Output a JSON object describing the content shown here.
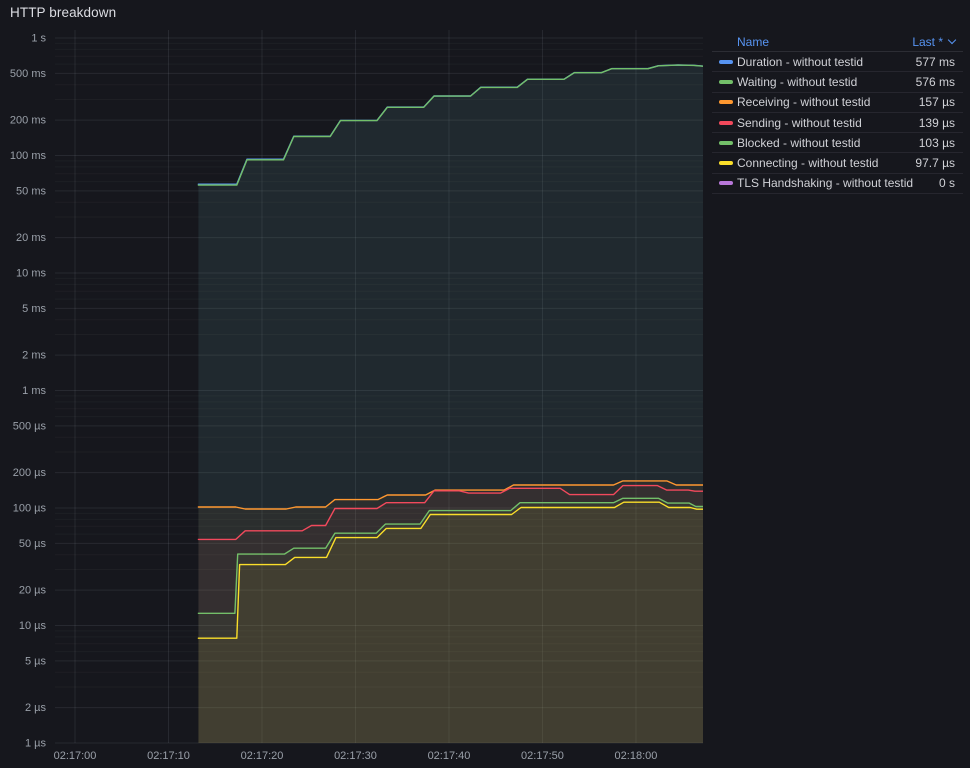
{
  "panel": {
    "title": "HTTP breakdown"
  },
  "legend": {
    "name_header": "Name",
    "last_header": "Last *",
    "sort_direction": "desc"
  },
  "theme": {
    "background": "#16171d",
    "text_primary": "#d0d1d6",
    "text_axis": "#9aa0a9",
    "link_blue": "#5794F2",
    "grid_major": "rgba(201,209,217,0.10)",
    "grid_minor": "rgba(201,209,217,0.045)",
    "row_separator": "rgba(204,204,220,0.09)"
  },
  "chart_data": {
    "type": "line",
    "title": "HTTP breakdown",
    "y_scale": "log10",
    "y_unit": "µs",
    "y_range": [
      1,
      1000000
    ],
    "x_range_s": [
      -2.14,
      67.17
    ],
    "grid": true,
    "legend_position": "right-table",
    "x_base_time": "02:17:00",
    "x_ticks": [
      {
        "t": 0,
        "label": "02:17:00"
      },
      {
        "t": 10,
        "label": "02:17:10"
      },
      {
        "t": 20,
        "label": "02:17:20"
      },
      {
        "t": 30,
        "label": "02:17:30"
      },
      {
        "t": 40,
        "label": "02:17:40"
      },
      {
        "t": 50,
        "label": "02:17:50"
      },
      {
        "t": 60,
        "label": "02:18:00"
      }
    ],
    "y_ticks": [
      {
        "v": 1000000,
        "label": "1 s"
      },
      {
        "v": 500000,
        "label": "500 ms"
      },
      {
        "v": 200000,
        "label": "200 ms"
      },
      {
        "v": 100000,
        "label": "100 ms"
      },
      {
        "v": 50000,
        "label": "50 ms"
      },
      {
        "v": 20000,
        "label": "20 ms"
      },
      {
        "v": 10000,
        "label": "10 ms"
      },
      {
        "v": 5000,
        "label": "5 ms"
      },
      {
        "v": 2000,
        "label": "2 ms"
      },
      {
        "v": 1000,
        "label": "1 ms"
      },
      {
        "v": 500,
        "label": "500 µs"
      },
      {
        "v": 200,
        "label": "200 µs"
      },
      {
        "v": 100,
        "label": "100 µs"
      },
      {
        "v": 50,
        "label": "50 µs"
      },
      {
        "v": 20,
        "label": "20 µs"
      },
      {
        "v": 10,
        "label": "10 µs"
      },
      {
        "v": 5,
        "label": "5 µs"
      },
      {
        "v": 2,
        "label": "2 µs"
      },
      {
        "v": 1,
        "label": "1 µs"
      }
    ],
    "minor_gridline_mantissas": [
      3,
      4,
      6,
      7,
      8,
      9
    ],
    "series": [
      {
        "name": "Duration - without testid",
        "slug": "duration",
        "color": "#5794F2",
        "last": "577 ms",
        "fill_opacity": 0.065,
        "points": [
          [
            13.2,
            57000
          ],
          [
            17.3,
            57000
          ],
          [
            18.4,
            93000
          ],
          [
            22.3,
            93000
          ],
          [
            23.4,
            146000
          ],
          [
            27.3,
            146000
          ],
          [
            28.4,
            199000
          ],
          [
            32.3,
            199000
          ],
          [
            33.4,
            258000
          ],
          [
            37.3,
            258000
          ],
          [
            38.4,
            321000
          ],
          [
            42.3,
            321000
          ],
          [
            43.4,
            381000
          ],
          [
            47.3,
            381000
          ],
          [
            48.4,
            446000
          ],
          [
            52.3,
            446000
          ],
          [
            53.4,
            508000
          ],
          [
            56.3,
            508000
          ],
          [
            57.4,
            549000
          ],
          [
            61.3,
            549000
          ],
          [
            62.4,
            581000
          ],
          [
            64.5,
            589000
          ],
          [
            66.2,
            586000
          ],
          [
            67.2,
            577000
          ]
        ]
      },
      {
        "name": "Waiting - without testid",
        "slug": "waiting",
        "color": "#73BF69",
        "last": "576 ms",
        "fill_opacity": 0.065,
        "points": [
          [
            13.2,
            56000
          ],
          [
            17.3,
            56000
          ],
          [
            18.4,
            92000
          ],
          [
            22.3,
            92000
          ],
          [
            23.4,
            145000
          ],
          [
            27.3,
            145000
          ],
          [
            28.4,
            198000
          ],
          [
            32.3,
            198000
          ],
          [
            33.4,
            257000
          ],
          [
            37.3,
            257000
          ],
          [
            38.4,
            320000
          ],
          [
            42.3,
            320000
          ],
          [
            43.4,
            380000
          ],
          [
            47.3,
            380000
          ],
          [
            48.4,
            445000
          ],
          [
            52.3,
            445000
          ],
          [
            53.4,
            507000
          ],
          [
            56.3,
            507000
          ],
          [
            57.4,
            548000
          ],
          [
            61.3,
            548000
          ],
          [
            62.4,
            580000
          ],
          [
            64.5,
            588000
          ],
          [
            66.2,
            585000
          ],
          [
            67.2,
            576000
          ]
        ]
      },
      {
        "name": "Receiving - without testid",
        "slug": "receiving",
        "color": "#FF9830",
        "last": "157 µs",
        "fill_opacity": 0.05,
        "points": [
          [
            13.2,
            102
          ],
          [
            17.2,
            102
          ],
          [
            18.2,
            98
          ],
          [
            22.6,
            98
          ],
          [
            23.6,
            102
          ],
          [
            26.8,
            102
          ],
          [
            27.8,
            118
          ],
          [
            32.4,
            118
          ],
          [
            33.4,
            129
          ],
          [
            37.5,
            129
          ],
          [
            38.5,
            142
          ],
          [
            45.9,
            142
          ],
          [
            46.9,
            157
          ],
          [
            57.6,
            157
          ],
          [
            58.6,
            170
          ],
          [
            63.3,
            170
          ],
          [
            64.3,
            157
          ],
          [
            67.2,
            157
          ]
        ]
      },
      {
        "name": "Sending - without testid",
        "slug": "sending",
        "color": "#F2495C",
        "last": "139 µs",
        "fill_opacity": 0.05,
        "points": [
          [
            13.2,
            54
          ],
          [
            17.2,
            54
          ],
          [
            18.2,
            64
          ],
          [
            24.3,
            64
          ],
          [
            25.3,
            71
          ],
          [
            26.8,
            71
          ],
          [
            27.8,
            99
          ],
          [
            32.3,
            99
          ],
          [
            33.3,
            111
          ],
          [
            37.4,
            111
          ],
          [
            38.4,
            140
          ],
          [
            41.1,
            140
          ],
          [
            42.1,
            134
          ],
          [
            45.5,
            134
          ],
          [
            46.5,
            147
          ],
          [
            51.9,
            147
          ],
          [
            52.9,
            130
          ],
          [
            57.6,
            130
          ],
          [
            58.6,
            155
          ],
          [
            62.3,
            155
          ],
          [
            63.3,
            142
          ],
          [
            65.6,
            142
          ],
          [
            66.3,
            139
          ],
          [
            67.2,
            139
          ]
        ]
      },
      {
        "name": "Blocked - without testid",
        "slug": "blocked",
        "color": "#73BF69",
        "last": "103 µs",
        "fill_opacity": 0.05,
        "points": [
          [
            13.2,
            12.7
          ],
          [
            17.1,
            12.7
          ],
          [
            17.4,
            40.5
          ],
          [
            22.4,
            40.5
          ],
          [
            23.4,
            45.5
          ],
          [
            26.8,
            45.5
          ],
          [
            27.8,
            61
          ],
          [
            32.2,
            61
          ],
          [
            33.2,
            73
          ],
          [
            36.9,
            73
          ],
          [
            37.9,
            95
          ],
          [
            46.6,
            95
          ],
          [
            47.6,
            111
          ],
          [
            57.6,
            111
          ],
          [
            58.6,
            121
          ],
          [
            62.4,
            121
          ],
          [
            63.4,
            110
          ],
          [
            65.7,
            110
          ],
          [
            66.4,
            103
          ],
          [
            67.2,
            103
          ]
        ]
      },
      {
        "name": "Connecting - without testid",
        "slug": "connecting",
        "color": "#FADE2A",
        "last": "97.7 µs",
        "fill_opacity": 0.05,
        "points": [
          [
            13.2,
            7.8
          ],
          [
            17.3,
            7.8
          ],
          [
            17.6,
            33
          ],
          [
            22.5,
            33
          ],
          [
            23.5,
            38
          ],
          [
            26.9,
            38
          ],
          [
            27.9,
            56
          ],
          [
            32.3,
            56
          ],
          [
            33.3,
            67
          ],
          [
            37.0,
            67
          ],
          [
            38.0,
            88
          ],
          [
            46.7,
            88
          ],
          [
            47.7,
            101
          ],
          [
            57.7,
            101
          ],
          [
            58.7,
            112
          ],
          [
            62.5,
            112
          ],
          [
            63.5,
            101
          ],
          [
            65.8,
            101
          ],
          [
            66.5,
            97.7
          ],
          [
            67.2,
            97.7
          ]
        ]
      },
      {
        "name": "TLS Handshaking - without testid",
        "slug": "tls-handshaking",
        "color": "#B877D9",
        "last": "0 s",
        "fill_opacity": 0,
        "points": []
      }
    ]
  }
}
